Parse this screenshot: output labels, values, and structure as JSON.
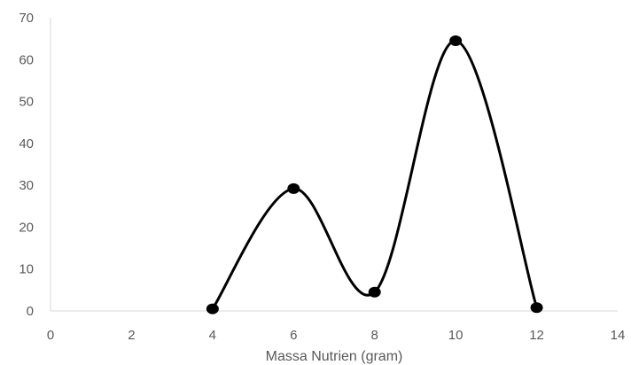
{
  "chart_data": {
    "type": "scatter",
    "title": "",
    "xlabel": "Massa Nutrien (gram)",
    "ylabel": "",
    "xlim": [
      0,
      14
    ],
    "ylim": [
      0,
      70
    ],
    "x_ticks": [
      0,
      2,
      4,
      6,
      8,
      10,
      12,
      14
    ],
    "y_ticks": [
      0,
      10,
      20,
      30,
      40,
      50,
      60,
      70
    ],
    "grid": false,
    "legend": "none",
    "line_style": "smoothed",
    "colors": {
      "series": "#000000",
      "axis": "#d9d9d9",
      "text": "#595959"
    },
    "series": [
      {
        "x": [
          4,
          6,
          8,
          10,
          12
        ],
        "y": [
          0.5,
          29.2,
          4.5,
          64.5,
          0.8
        ]
      }
    ]
  }
}
